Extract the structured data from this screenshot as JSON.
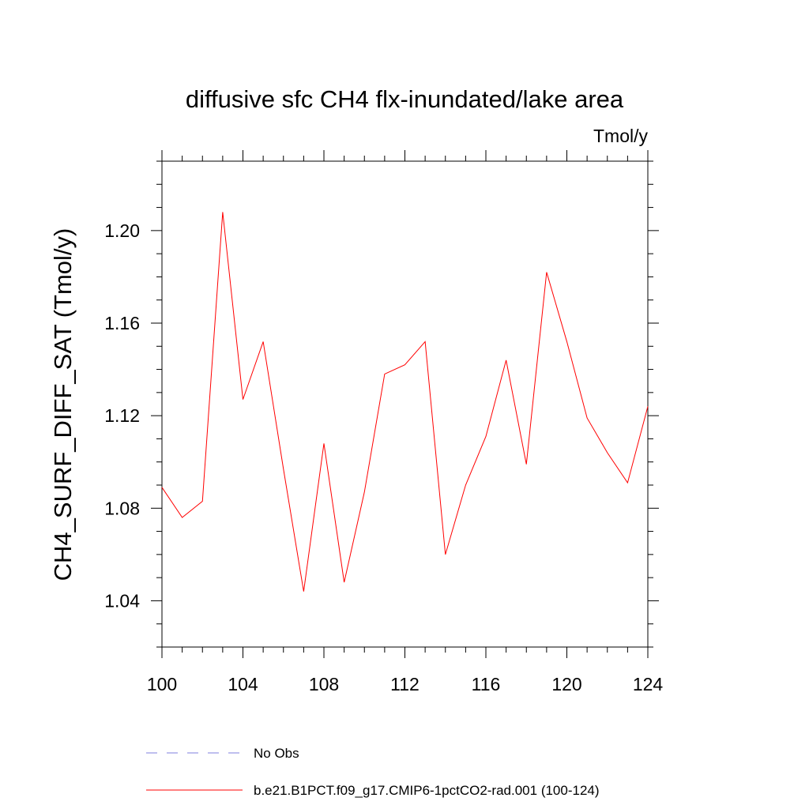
{
  "chart_data": {
    "type": "line",
    "title": "diffusive sfc CH4 flx-inundated/lake area",
    "units_label": "Tmol/y",
    "xlabel": "",
    "ylabel": "CH4_SURF_DIFF_SAT  (Tmol/y)",
    "xlim": [
      100,
      124
    ],
    "ylim": [
      1.02,
      1.23
    ],
    "x_ticks": [
      100,
      104,
      108,
      112,
      116,
      120,
      124
    ],
    "x_tick_labels": [
      "100",
      "104",
      "108",
      "112",
      "116",
      "120",
      "124"
    ],
    "y_ticks": [
      1.04,
      1.08,
      1.12,
      1.16,
      1.2
    ],
    "y_tick_labels": [
      "1.04",
      "1.08",
      "1.12",
      "1.16",
      "1.20"
    ],
    "grid": false,
    "legend_position": "bottom",
    "series": [
      {
        "name": "b.e21.B1PCT.f09_g17.CMIP6-1pctCO2-rad.001 (100-124)",
        "color": "#ff0000",
        "style": "solid",
        "x": [
          100,
          101,
          102,
          103,
          104,
          105,
          106,
          107,
          108,
          109,
          110,
          111,
          112,
          113,
          114,
          115,
          116,
          117,
          118,
          119,
          120,
          121,
          122,
          123,
          124
        ],
        "values": [
          1.089,
          1.076,
          1.083,
          1.208,
          1.127,
          1.152,
          1.097,
          1.044,
          1.108,
          1.048,
          1.087,
          1.138,
          1.142,
          1.152,
          1.06,
          1.09,
          1.111,
          1.144,
          1.099,
          1.182,
          1.152,
          1.119,
          1.104,
          1.091,
          1.124
        ]
      },
      {
        "name": "No Obs",
        "color": "#7f7fdf",
        "style": "dashed",
        "x": [],
        "values": []
      }
    ]
  }
}
